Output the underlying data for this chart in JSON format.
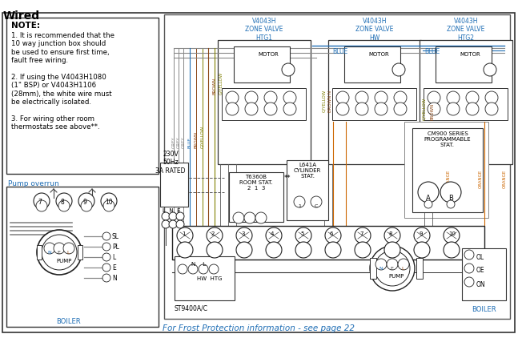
{
  "title": "Wired",
  "bg_color": "#ffffff",
  "note_title": "NOTE:",
  "note_lines": "1. It is recommended that the\n10 way junction box should\nbe used to ensure first time,\nfault free wiring.\n\n2. If using the V4043H1080\n(1\" BSP) or V4043H1106\n(28mm), the white wire must\nbe electrically isolated.\n\n3. For wiring other room\nthermostats see above**.",
  "pump_overrun_label": "Pump overrun",
  "footer": "For Frost Protection information - see page 22",
  "wire_colors": {
    "grey": "#888888",
    "blue": "#1f6eb5",
    "brown": "#8B4513",
    "gyellow": "#808000",
    "orange": "#cc6600",
    "black": "#111111"
  },
  "junction_nums": [
    "1",
    "2",
    "3",
    "4",
    "5",
    "6",
    "7",
    "8",
    "9",
    "10"
  ],
  "zone_labels": [
    "V4043H\nZONE VALVE\nHTG1",
    "V4043H\nZONE VALVE\nHW",
    "V4043H\nZONE VALVE\nHTG2"
  ]
}
